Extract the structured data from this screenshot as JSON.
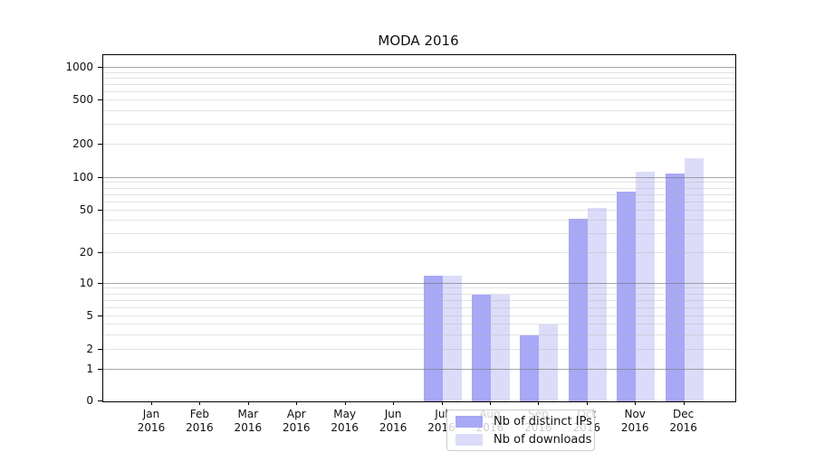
{
  "title": "MODA 2016",
  "chart_data": {
    "type": "bar",
    "title": "MODA 2016",
    "categories": [
      "Jan 2016",
      "Feb 2016",
      "Mar 2016",
      "Apr 2016",
      "May 2016",
      "Jun 2016",
      "Jul 2016",
      "Aug 2016",
      "Sep 2016",
      "Oct 2016",
      "Nov 2016",
      "Dec 2016"
    ],
    "series": [
      {
        "name": "Nb of distinct IPs",
        "color": "#a8a8f6",
        "values": [
          0,
          0,
          0,
          0,
          0,
          0,
          12,
          8,
          3,
          42,
          75,
          110
        ]
      },
      {
        "name": "Nb of downloads",
        "color": "#dcdcfa",
        "values": [
          0,
          0,
          0,
          0,
          0,
          0,
          12,
          8,
          4,
          53,
          114,
          150
        ]
      }
    ],
    "xlabel": "",
    "ylabel": "",
    "yscale": "symlog",
    "ylim": [
      0,
      1230
    ],
    "yticks": [
      0,
      1,
      2,
      5,
      10,
      20,
      50,
      100,
      200,
      500,
      1000
    ],
    "y_anchors": [
      [
        0,
        0.0
      ],
      [
        1,
        0.0914
      ],
      [
        2,
        0.1488
      ],
      [
        5,
        0.2454
      ],
      [
        10,
        0.3394
      ],
      [
        20,
        0.4282
      ],
      [
        50,
        0.5509
      ],
      [
        100,
        0.6449
      ],
      [
        200,
        0.7415
      ],
      [
        500,
        0.8695
      ],
      [
        1000,
        0.9634
      ]
    ],
    "grid": {
      "major_lines": [
        1,
        10,
        100,
        1000
      ],
      "minor_lines": [
        2,
        3,
        4,
        5,
        6,
        7,
        8,
        9,
        20,
        30,
        40,
        50,
        60,
        70,
        80,
        90,
        200,
        300,
        400,
        500,
        600,
        700,
        800,
        900
      ]
    },
    "legend": {
      "position": "inside-bottom-center",
      "entries": [
        "Nb of distinct IPs",
        "Nb of downloads"
      ]
    },
    "colors": {
      "major_grid": "#787878",
      "minor_grid": "#b4b4b4",
      "spine": "#000000",
      "background": "#ffffff"
    }
  }
}
